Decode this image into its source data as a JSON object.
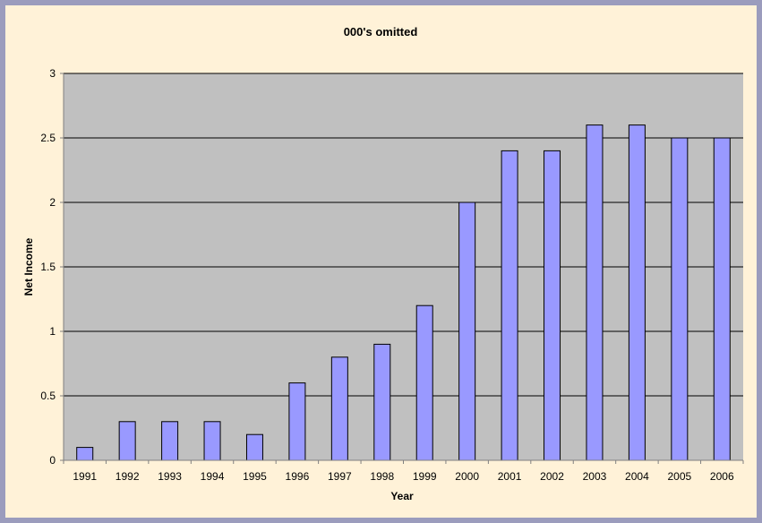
{
  "chart_data": {
    "type": "bar",
    "title": "000's omitted",
    "xlabel": "Year",
    "ylabel": "Net Income",
    "categories": [
      "1991",
      "1992",
      "1993",
      "1994",
      "1995",
      "1996",
      "1997",
      "1998",
      "1999",
      "2000",
      "2001",
      "2002",
      "2003",
      "2004",
      "2005",
      "2006"
    ],
    "values": [
      0.1,
      0.3,
      0.3,
      0.3,
      0.2,
      0.6,
      0.8,
      0.9,
      1.2,
      2.0,
      2.4,
      2.4,
      2.6,
      2.6,
      2.5,
      2.5
    ],
    "ylim": [
      0,
      3
    ],
    "yticks": [
      "0",
      "0.5",
      "1",
      "1.5",
      "2",
      "2.5",
      "3"
    ],
    "grid": true,
    "legend": "none",
    "colors": {
      "frame_border": "#9b9cbd",
      "frame_background": "#fff2d8",
      "plot_background": "#c0c0c0",
      "bar_fill": "#9999ff",
      "bar_stroke": "#000000",
      "gridline": "#000000"
    }
  }
}
